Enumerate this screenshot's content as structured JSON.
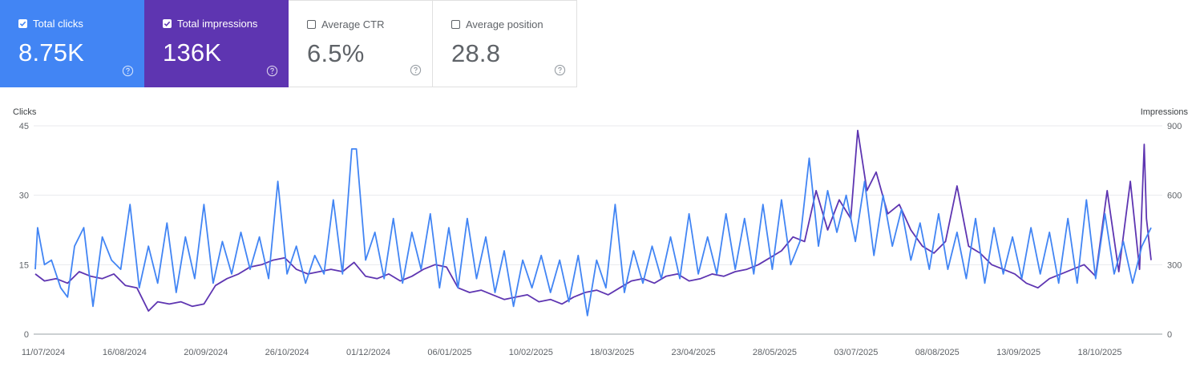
{
  "metrics": [
    {
      "label": "Total clicks",
      "value": "8.75K",
      "checked": true
    },
    {
      "label": "Total impressions",
      "value": "136K",
      "checked": true
    },
    {
      "label": "Average CTR",
      "value": "6.5%",
      "checked": false
    },
    {
      "label": "Average position",
      "value": "28.8",
      "checked": false
    }
  ],
  "colors": {
    "clicks": "#4285f4",
    "impressions": "#5e35b1",
    "grid": "#e8eaed",
    "axis": "#9aa0a6"
  },
  "icons": {
    "checkbox": "checkbox-icon",
    "help": "help-circle-icon"
  },
  "chart_data": {
    "type": "line",
    "left_axis": {
      "label": "Clicks",
      "ticks": [
        0,
        15,
        30,
        45
      ],
      "range": [
        0,
        45
      ]
    },
    "right_axis": {
      "label": "Impressions",
      "ticks": [
        0,
        300,
        600,
        900
      ],
      "range": [
        0,
        900
      ]
    },
    "x_ticks": [
      "11/07/2024",
      "16/08/2024",
      "20/09/2024",
      "26/10/2024",
      "01/12/2024",
      "06/01/2025",
      "10/02/2025",
      "18/03/2025",
      "23/04/2025",
      "28/05/2025",
      "03/07/2025",
      "08/08/2025",
      "13/09/2025",
      "18/10/2025"
    ],
    "x_range": [
      "2024-07-11",
      "2025-11-06"
    ],
    "grid": true,
    "series": [
      {
        "name": "Total clicks",
        "axis": "left",
        "color": "#4285f4",
        "points": [
          [
            "2024-07-11",
            14
          ],
          [
            "2024-07-12",
            23
          ],
          [
            "2024-07-15",
            15
          ],
          [
            "2024-07-18",
            16
          ],
          [
            "2024-07-22",
            10
          ],
          [
            "2024-07-25",
            8
          ],
          [
            "2024-07-28",
            19
          ],
          [
            "2024-08-01",
            23
          ],
          [
            "2024-08-05",
            6
          ],
          [
            "2024-08-09",
            21
          ],
          [
            "2024-08-13",
            16
          ],
          [
            "2024-08-17",
            14
          ],
          [
            "2024-08-21",
            28
          ],
          [
            "2024-08-25",
            10
          ],
          [
            "2024-08-29",
            19
          ],
          [
            "2024-09-02",
            11
          ],
          [
            "2024-09-06",
            24
          ],
          [
            "2024-09-10",
            9
          ],
          [
            "2024-09-14",
            21
          ],
          [
            "2024-09-18",
            12
          ],
          [
            "2024-09-22",
            28
          ],
          [
            "2024-09-26",
            11
          ],
          [
            "2024-09-30",
            20
          ],
          [
            "2024-10-04",
            13
          ],
          [
            "2024-10-08",
            22
          ],
          [
            "2024-10-12",
            14
          ],
          [
            "2024-10-16",
            21
          ],
          [
            "2024-10-20",
            12
          ],
          [
            "2024-10-24",
            33
          ],
          [
            "2024-10-28",
            13
          ],
          [
            "2024-11-01",
            19
          ],
          [
            "2024-11-05",
            11
          ],
          [
            "2024-11-09",
            17
          ],
          [
            "2024-11-13",
            13
          ],
          [
            "2024-11-17",
            29
          ],
          [
            "2024-11-21",
            13
          ],
          [
            "2024-11-25",
            40
          ],
          [
            "2024-11-27",
            40
          ],
          [
            "2024-12-01",
            16
          ],
          [
            "2024-12-05",
            22
          ],
          [
            "2024-12-09",
            12
          ],
          [
            "2024-12-13",
            25
          ],
          [
            "2024-12-17",
            11
          ],
          [
            "2024-12-21",
            22
          ],
          [
            "2024-12-25",
            14
          ],
          [
            "2024-12-29",
            26
          ],
          [
            "2025-01-02",
            10
          ],
          [
            "2025-01-06",
            23
          ],
          [
            "2025-01-10",
            10
          ],
          [
            "2025-01-14",
            25
          ],
          [
            "2025-01-18",
            12
          ],
          [
            "2025-01-22",
            21
          ],
          [
            "2025-01-26",
            9
          ],
          [
            "2025-01-30",
            18
          ],
          [
            "2025-02-03",
            6
          ],
          [
            "2025-02-07",
            16
          ],
          [
            "2025-02-11",
            10
          ],
          [
            "2025-02-15",
            17
          ],
          [
            "2025-02-19",
            9
          ],
          [
            "2025-02-23",
            16
          ],
          [
            "2025-02-27",
            7
          ],
          [
            "2025-03-03",
            17
          ],
          [
            "2025-03-07",
            4
          ],
          [
            "2025-03-11",
            16
          ],
          [
            "2025-03-15",
            10
          ],
          [
            "2025-03-19",
            28
          ],
          [
            "2025-03-23",
            9
          ],
          [
            "2025-03-27",
            18
          ],
          [
            "2025-03-31",
            11
          ],
          [
            "2025-04-04",
            19
          ],
          [
            "2025-04-08",
            12
          ],
          [
            "2025-04-12",
            21
          ],
          [
            "2025-04-16",
            12
          ],
          [
            "2025-04-20",
            26
          ],
          [
            "2025-04-24",
            13
          ],
          [
            "2025-04-28",
            21
          ],
          [
            "2025-05-02",
            13
          ],
          [
            "2025-05-06",
            26
          ],
          [
            "2025-05-10",
            14
          ],
          [
            "2025-05-14",
            25
          ],
          [
            "2025-05-18",
            13
          ],
          [
            "2025-05-22",
            28
          ],
          [
            "2025-05-26",
            14
          ],
          [
            "2025-05-30",
            29
          ],
          [
            "2025-06-03",
            15
          ],
          [
            "2025-06-07",
            20
          ],
          [
            "2025-06-11",
            38
          ],
          [
            "2025-06-15",
            19
          ],
          [
            "2025-06-19",
            31
          ],
          [
            "2025-06-23",
            22
          ],
          [
            "2025-06-27",
            30
          ],
          [
            "2025-07-01",
            20
          ],
          [
            "2025-07-05",
            33
          ],
          [
            "2025-07-09",
            17
          ],
          [
            "2025-07-13",
            30
          ],
          [
            "2025-07-17",
            19
          ],
          [
            "2025-07-21",
            27
          ],
          [
            "2025-07-25",
            16
          ],
          [
            "2025-07-29",
            24
          ],
          [
            "2025-08-02",
            14
          ],
          [
            "2025-08-06",
            26
          ],
          [
            "2025-08-10",
            14
          ],
          [
            "2025-08-14",
            22
          ],
          [
            "2025-08-18",
            12
          ],
          [
            "2025-08-22",
            25
          ],
          [
            "2025-08-26",
            11
          ],
          [
            "2025-08-30",
            23
          ],
          [
            "2025-09-03",
            13
          ],
          [
            "2025-09-07",
            21
          ],
          [
            "2025-09-11",
            12
          ],
          [
            "2025-09-15",
            23
          ],
          [
            "2025-09-19",
            13
          ],
          [
            "2025-09-23",
            22
          ],
          [
            "2025-09-27",
            11
          ],
          [
            "2025-10-01",
            25
          ],
          [
            "2025-10-05",
            11
          ],
          [
            "2025-10-09",
            29
          ],
          [
            "2025-10-13",
            12
          ],
          [
            "2025-10-17",
            26
          ],
          [
            "2025-10-21",
            13
          ],
          [
            "2025-10-25",
            20
          ],
          [
            "2025-10-29",
            11
          ],
          [
            "2025-11-02",
            19
          ],
          [
            "2025-11-06",
            23
          ]
        ]
      },
      {
        "name": "Total impressions",
        "axis": "right",
        "color": "#5e35b1",
        "points": [
          [
            "2024-07-11",
            260
          ],
          [
            "2024-07-15",
            230
          ],
          [
            "2024-07-20",
            240
          ],
          [
            "2024-07-25",
            220
          ],
          [
            "2024-07-30",
            270
          ],
          [
            "2024-08-04",
            250
          ],
          [
            "2024-08-09",
            240
          ],
          [
            "2024-08-14",
            260
          ],
          [
            "2024-08-19",
            210
          ],
          [
            "2024-08-24",
            200
          ],
          [
            "2024-08-29",
            100
          ],
          [
            "2024-09-02",
            140
          ],
          [
            "2024-09-07",
            130
          ],
          [
            "2024-09-12",
            140
          ],
          [
            "2024-09-17",
            120
          ],
          [
            "2024-09-22",
            130
          ],
          [
            "2024-09-27",
            210
          ],
          [
            "2024-10-02",
            240
          ],
          [
            "2024-10-07",
            260
          ],
          [
            "2024-10-12",
            290
          ],
          [
            "2024-10-17",
            300
          ],
          [
            "2024-10-22",
            320
          ],
          [
            "2024-10-27",
            330
          ],
          [
            "2024-11-01",
            280
          ],
          [
            "2024-11-06",
            260
          ],
          [
            "2024-11-11",
            270
          ],
          [
            "2024-11-16",
            280
          ],
          [
            "2024-11-21",
            270
          ],
          [
            "2024-11-26",
            310
          ],
          [
            "2024-12-01",
            250
          ],
          [
            "2024-12-06",
            240
          ],
          [
            "2024-12-11",
            260
          ],
          [
            "2024-12-16",
            230
          ],
          [
            "2024-12-21",
            250
          ],
          [
            "2024-12-26",
            280
          ],
          [
            "2024-12-31",
            300
          ],
          [
            "2025-01-05",
            290
          ],
          [
            "2025-01-10",
            200
          ],
          [
            "2025-01-15",
            180
          ],
          [
            "2025-01-20",
            190
          ],
          [
            "2025-01-25",
            170
          ],
          [
            "2025-01-30",
            150
          ],
          [
            "2025-02-04",
            160
          ],
          [
            "2025-02-09",
            170
          ],
          [
            "2025-02-14",
            140
          ],
          [
            "2025-02-19",
            150
          ],
          [
            "2025-02-24",
            130
          ],
          [
            "2025-03-01",
            160
          ],
          [
            "2025-03-06",
            180
          ],
          [
            "2025-03-11",
            190
          ],
          [
            "2025-03-16",
            170
          ],
          [
            "2025-03-21",
            200
          ],
          [
            "2025-03-26",
            230
          ],
          [
            "2025-03-31",
            240
          ],
          [
            "2025-04-05",
            220
          ],
          [
            "2025-04-10",
            250
          ],
          [
            "2025-04-15",
            260
          ],
          [
            "2025-04-20",
            230
          ],
          [
            "2025-04-25",
            240
          ],
          [
            "2025-04-30",
            260
          ],
          [
            "2025-05-05",
            250
          ],
          [
            "2025-05-10",
            270
          ],
          [
            "2025-05-15",
            280
          ],
          [
            "2025-05-20",
            300
          ],
          [
            "2025-05-25",
            330
          ],
          [
            "2025-05-30",
            360
          ],
          [
            "2025-06-04",
            420
          ],
          [
            "2025-06-09",
            400
          ],
          [
            "2025-06-14",
            620
          ],
          [
            "2025-06-19",
            450
          ],
          [
            "2025-06-24",
            580
          ],
          [
            "2025-06-29",
            500
          ],
          [
            "2025-07-02",
            880
          ],
          [
            "2025-07-06",
            620
          ],
          [
            "2025-07-10",
            700
          ],
          [
            "2025-07-15",
            520
          ],
          [
            "2025-07-20",
            560
          ],
          [
            "2025-07-25",
            450
          ],
          [
            "2025-07-30",
            380
          ],
          [
            "2025-08-04",
            350
          ],
          [
            "2025-08-09",
            400
          ],
          [
            "2025-08-14",
            640
          ],
          [
            "2025-08-19",
            380
          ],
          [
            "2025-08-24",
            350
          ],
          [
            "2025-08-29",
            300
          ],
          [
            "2025-09-03",
            280
          ],
          [
            "2025-09-08",
            260
          ],
          [
            "2025-09-13",
            220
          ],
          [
            "2025-09-18",
            200
          ],
          [
            "2025-09-23",
            240
          ],
          [
            "2025-09-28",
            260
          ],
          [
            "2025-10-03",
            280
          ],
          [
            "2025-10-08",
            300
          ],
          [
            "2025-10-13",
            250
          ],
          [
            "2025-10-18",
            620
          ],
          [
            "2025-10-23",
            270
          ],
          [
            "2025-10-28",
            660
          ],
          [
            "2025-11-01",
            280
          ],
          [
            "2025-11-03",
            820
          ],
          [
            "2025-11-04",
            500
          ],
          [
            "2025-11-06",
            320
          ]
        ]
      }
    ]
  }
}
